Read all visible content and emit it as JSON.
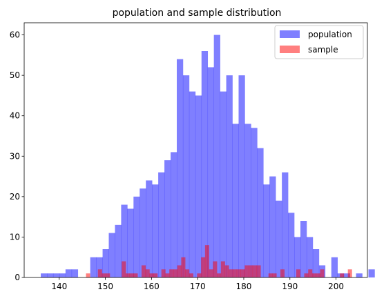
{
  "chart_data": {
    "type": "bar",
    "title": "population and sample distribution",
    "xlabel": "",
    "ylabel": "",
    "xlim": [
      132.4,
      206.8
    ],
    "ylim": [
      0,
      63
    ],
    "grid": false,
    "legend_placement": "top-right",
    "x_ticks": [
      140,
      150,
      160,
      170,
      180,
      190,
      200
    ],
    "y_ticks": [
      0,
      10,
      20,
      30,
      40,
      50,
      60
    ],
    "series": [
      {
        "name": "population",
        "color": "#0000ff",
        "opacity": 0.5,
        "bin_start": 136.0,
        "bin_width": 1.34,
        "counts": [
          1,
          1,
          1,
          1,
          2,
          2,
          0,
          0,
          5,
          5,
          7,
          11,
          13,
          18,
          17,
          20,
          22,
          24,
          23,
          26,
          29,
          31,
          54,
          50,
          46,
          45,
          56,
          52,
          60,
          46,
          50,
          38,
          50,
          38,
          37,
          32,
          23,
          25,
          19,
          26,
          16,
          10,
          14,
          10,
          7,
          3,
          0,
          5,
          1,
          1,
          0,
          1,
          0,
          2
        ]
      },
      {
        "name": "sample",
        "color": "#ff0000",
        "opacity": 0.5,
        "bin_start": 145.8,
        "bin_width": 0.86,
        "counts": [
          1,
          0,
          0,
          2,
          1,
          1,
          0,
          0,
          0,
          4,
          1,
          1,
          1,
          0,
          3,
          2,
          1,
          1,
          0,
          2,
          1,
          2,
          2,
          3,
          5,
          2,
          1,
          0,
          1,
          5,
          8,
          2,
          4,
          1,
          4,
          3,
          2,
          2,
          2,
          2,
          3,
          3,
          3,
          3,
          0,
          0,
          1,
          1,
          0,
          2,
          0,
          0,
          0,
          2,
          0,
          1,
          2,
          1,
          1,
          2,
          0,
          0,
          0,
          0,
          1,
          0,
          2
        ]
      }
    ]
  }
}
